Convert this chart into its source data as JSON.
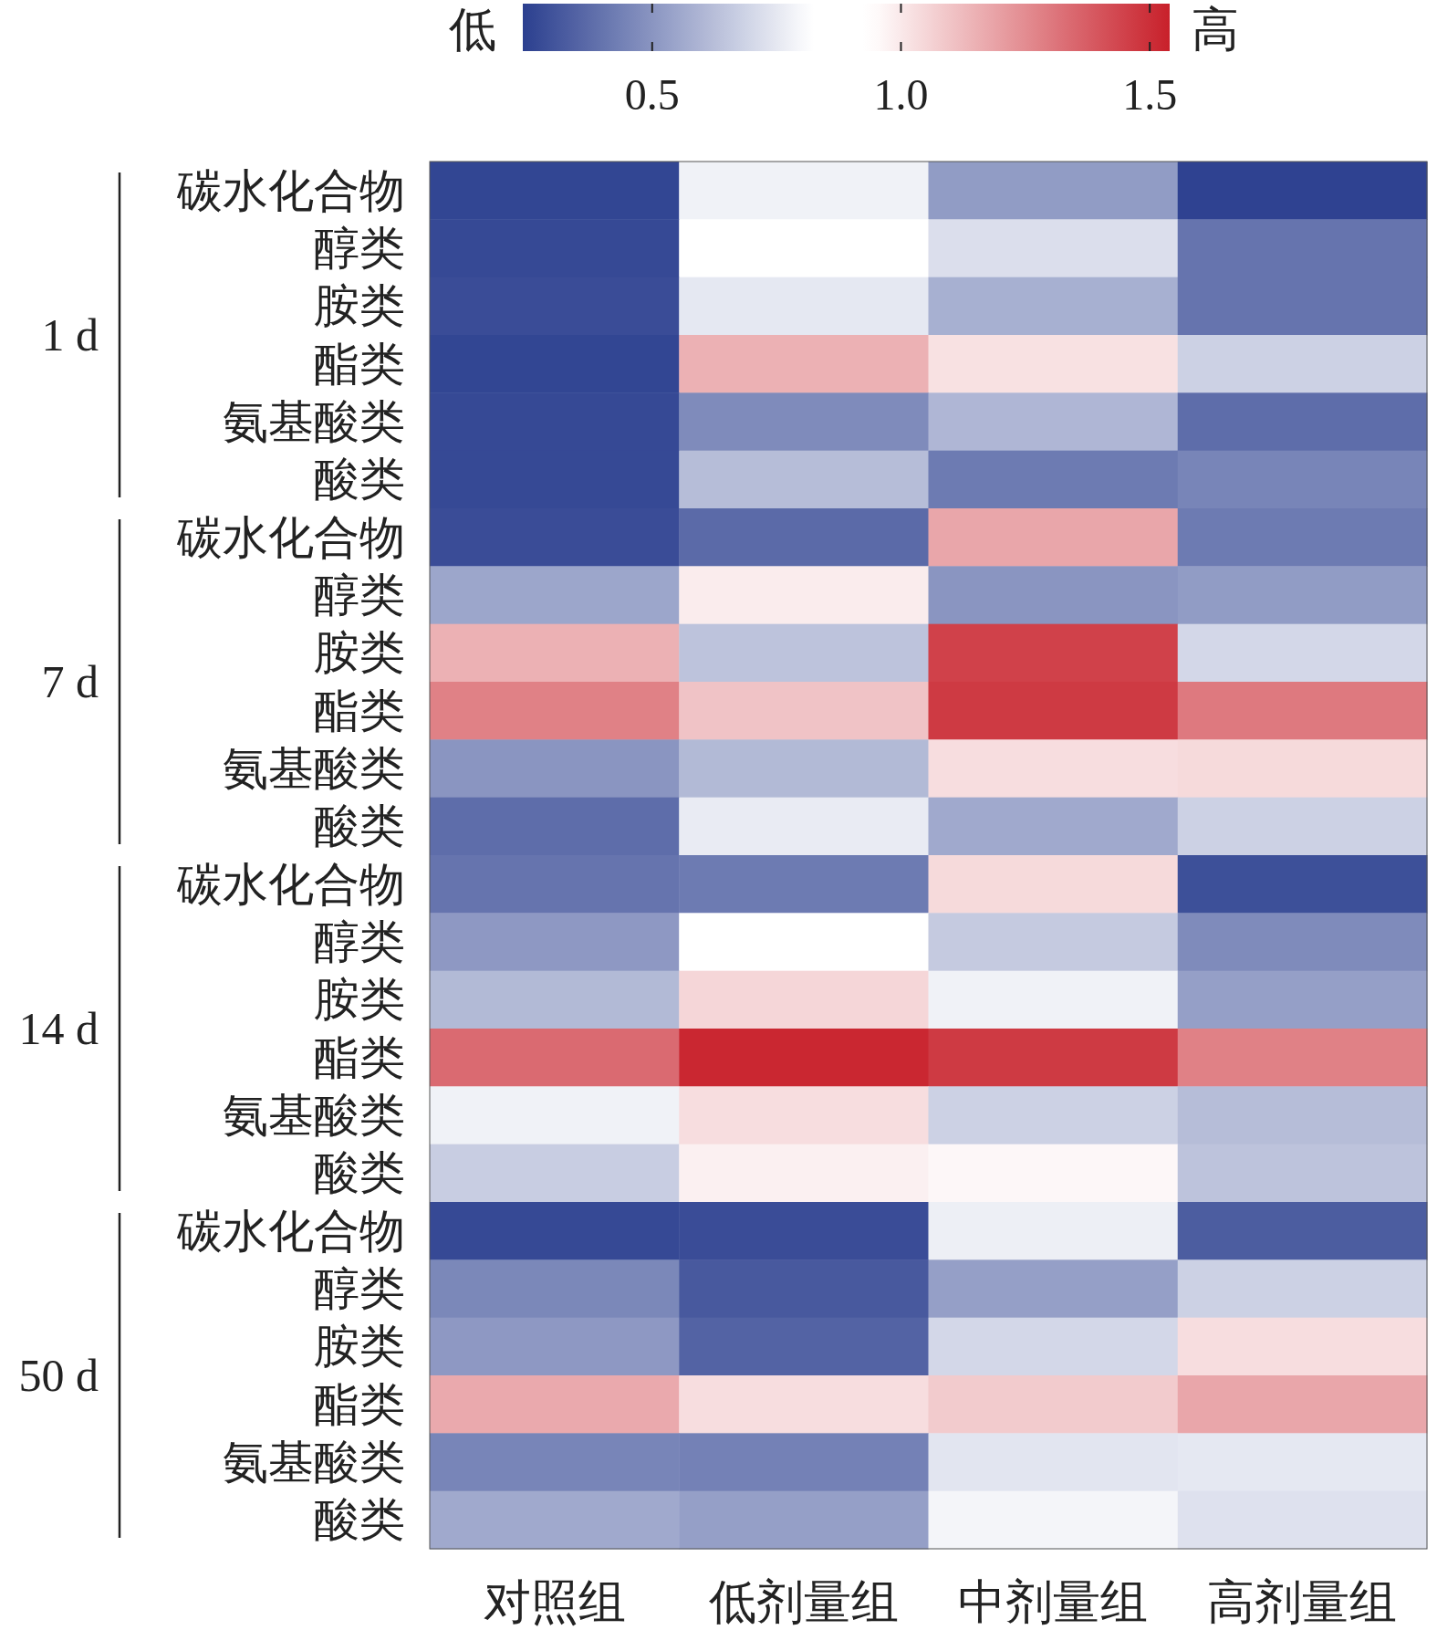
{
  "chart_data": {
    "type": "heatmap",
    "categories": [
      "对照组",
      "低剂量组",
      "中剂量组",
      "高剂量组"
    ],
    "y_categories": [
      "碳水化合物",
      "醇类",
      "胺类",
      "酯类",
      "氨基酸类",
      "酸类",
      "碳水化合物",
      "醇类",
      "胺类",
      "酯类",
      "氨基酸类",
      "酸类",
      "碳水化合物",
      "醇类",
      "胺类",
      "酯类",
      "氨基酸类",
      "酸类",
      "碳水化合物",
      "醇类",
      "胺类",
      "酯类",
      "氨基酸类",
      "酸类"
    ],
    "cells": [
      [
        0.26,
        0.78,
        0.52,
        0.25
      ],
      [
        0.27,
        0.88,
        0.72,
        0.4
      ],
      [
        0.28,
        0.75,
        0.58,
        0.4
      ],
      [
        0.26,
        1.15,
        1.02,
        0.68
      ],
      [
        0.27,
        0.47,
        0.6,
        0.38
      ],
      [
        0.27,
        0.62,
        0.42,
        0.45
      ],
      [
        0.28,
        0.37,
        1.18,
        0.42
      ],
      [
        0.55,
        0.99,
        0.5,
        0.52
      ],
      [
        1.15,
        0.64,
        1.45,
        0.7
      ],
      [
        1.28,
        1.1,
        1.47,
        1.3
      ],
      [
        0.5,
        0.61,
        1.03,
        1.04
      ],
      [
        0.38,
        0.76,
        0.56,
        0.68
      ],
      [
        0.4,
        0.42,
        1.04,
        0.29
      ],
      [
        0.51,
        0.88,
        0.66,
        0.47
      ],
      [
        0.61,
        1.05,
        0.78,
        0.53
      ],
      [
        1.34,
        1.52,
        1.47,
        1.28
      ],
      [
        0.78,
        1.03,
        0.68,
        0.62
      ],
      [
        0.67,
        0.98,
        0.96,
        0.64
      ],
      [
        0.27,
        0.28,
        0.77,
        0.33
      ],
      [
        0.46,
        0.32,
        0.53,
        0.68
      ],
      [
        0.51,
        0.35,
        0.7,
        1.03
      ],
      [
        1.17,
        1.03,
        1.08,
        1.18
      ],
      [
        0.45,
        0.44,
        0.74,
        0.75
      ],
      [
        0.56,
        0.53,
        0.79,
        0.73
      ]
    ],
    "clim": [
      0.24,
      1.54
    ],
    "cticks": [
      0.5,
      {
        "value": 1,
        "label": "1.0"
      },
      1.5
    ],
    "annotations": [
      "低",
      "高",
      "1 d",
      "7 d",
      "14 d",
      "50 d"
    ]
  }
}
